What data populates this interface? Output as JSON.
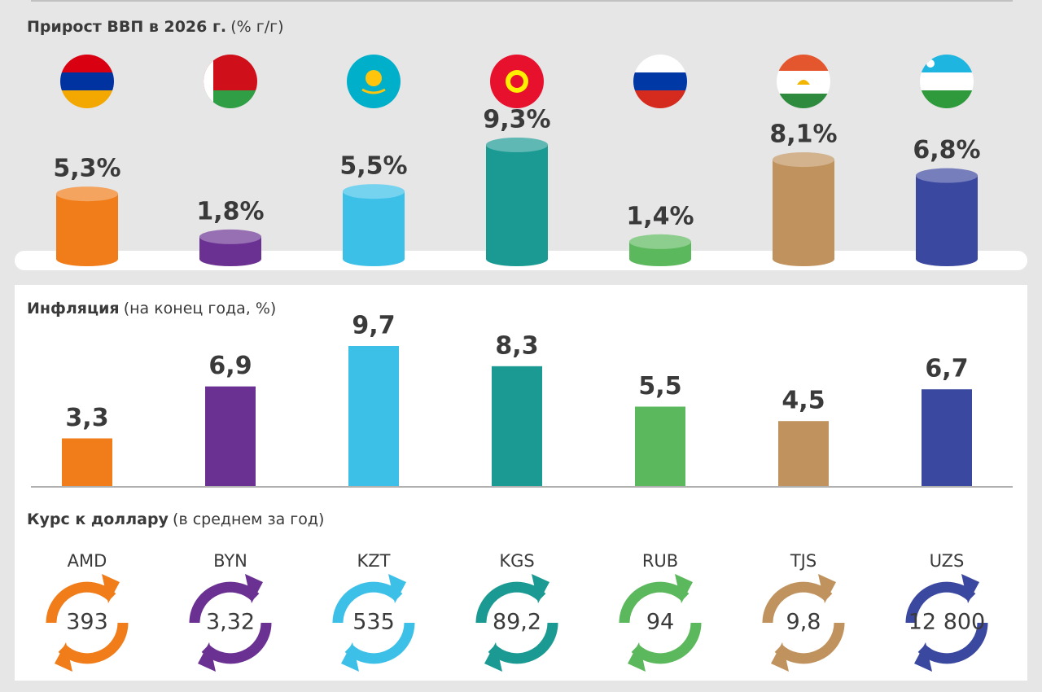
{
  "chart_data": [
    {
      "type": "cylinder",
      "title": "Прирост ВВП в 2026 г.",
      "subtitle": "(% г/г)",
      "values": [
        5.3,
        1.8,
        5.5,
        9.3,
        1.4,
        8.1,
        6.8
      ],
      "value_labels": [
        "5,3%",
        "1,8%",
        "5,5%",
        "9,3%",
        "1,4%",
        "8,1%",
        "6,8%"
      ],
      "colors": [
        "#f07d1a",
        "#6a3192",
        "#3cc0e8",
        "#1a9a92",
        "#5cb85c",
        "#c0935e",
        "#3b48a0"
      ]
    },
    {
      "type": "bar",
      "title": "Инфляция",
      "subtitle": "(на конец года, %)",
      "values": [
        3.3,
        6.9,
        9.7,
        8.3,
        5.5,
        4.5,
        6.7
      ],
      "value_labels": [
        "3,3",
        "6,9",
        "9,7",
        "8,3",
        "5,5",
        "4,5",
        "6,7"
      ],
      "colors": [
        "#f07d1a",
        "#6a3192",
        "#3cc0e8",
        "#1a9a92",
        "#5cb85c",
        "#c0935e",
        "#3b48a0"
      ]
    },
    {
      "type": "rate",
      "title": "Курс к доллару",
      "subtitle": "(в среднем за год)",
      "categories": [
        "AMD",
        "BYN",
        "KZT",
        "KGS",
        "RUB",
        "TJS",
        "UZS"
      ],
      "values": [
        393,
        3.32,
        535,
        89.2,
        94,
        9.8,
        12800
      ],
      "value_labels": [
        "393",
        "3,32",
        "535",
        "89,2",
        "94",
        "9,8",
        "12 800"
      ],
      "colors": [
        "#f07d1a",
        "#6a3192",
        "#3cc0e8",
        "#1a9a92",
        "#5cb85c",
        "#c0935e",
        "#3b48a0"
      ]
    }
  ]
}
